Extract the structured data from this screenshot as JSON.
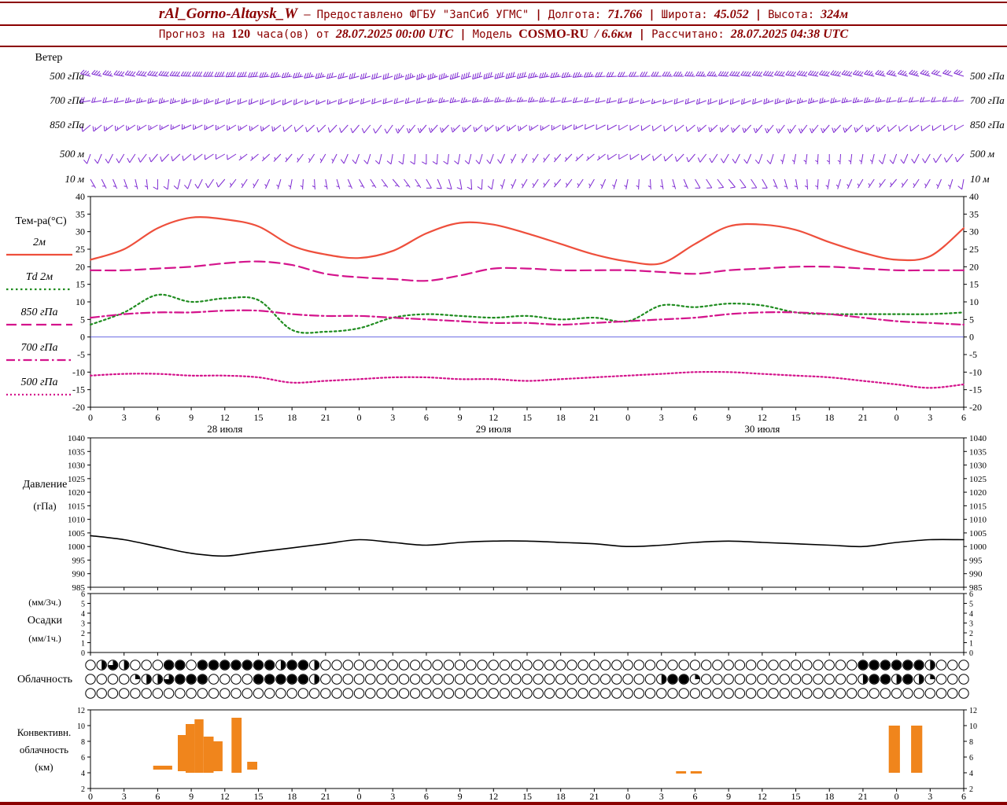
{
  "header": {
    "station": "rAl_Gorno-Altaysk_W",
    "dash": "—",
    "provider": "Предоставлено ФГБУ \"ЗапСиб УГМС\"",
    "sep": "|",
    "lon_label": "Долгота:",
    "lon": "71.766",
    "lat_label": "Широта:",
    "lat": "45.052",
    "alt_label": "Высота:",
    "alt": "324м",
    "forecast_prefix": "Прогноз на",
    "forecast_hours": "120",
    "forecast_suffix": "часа(ов) от",
    "forecast_start": "28.07.2025 00:00 UTC",
    "model_label": "Модель",
    "model_name": "COSMO-RU",
    "model_res": "/ 6.6км",
    "calc_label": "Рассчитано:",
    "calc_time": "28.07.2025 04:38 UTC"
  },
  "colors": {
    "maroon": "#8B0000",
    "wind": "#7E2AD2",
    "temp_2m": "#EE4F3C",
    "dewpoint_2m": "#1F8C1F",
    "temp_850": "#D4148C",
    "pressure": "#000000",
    "precip": "#2E7D32",
    "convective": "#F0851C",
    "zero_line": "#5555DD"
  },
  "x_axis": {
    "tick_step_h": 3,
    "total_hours": 78,
    "hour_label_mod": 24,
    "x_hours": [
      0,
      3,
      6,
      9,
      12,
      15,
      18,
      21,
      24,
      27,
      30,
      33,
      36,
      39,
      42,
      45,
      48,
      51,
      54,
      57,
      60,
      63,
      66,
      69,
      72,
      75,
      78
    ],
    "dates": [
      {
        "t": 12,
        "label": "28 июля"
      },
      {
        "t": 36,
        "label": "29 июля"
      },
      {
        "t": 60,
        "label": "30 июля"
      }
    ]
  },
  "chart_data": [
    {
      "id": "wind",
      "type": "wind-barbs",
      "title": "Ветер",
      "x_step_h": 3,
      "levels": [
        {
          "label": "500 гПа",
          "dir": [
            285,
            280,
            278,
            272,
            268,
            265,
            262,
            258,
            255,
            252,
            250,
            252,
            255,
            258,
            262,
            265,
            268,
            270,
            272,
            274,
            276,
            278,
            280,
            282,
            284,
            286,
            288
          ],
          "speed_kt": [
            35,
            38,
            40,
            42,
            40,
            38,
            35,
            33,
            30,
            32,
            35,
            38,
            40,
            38,
            35,
            33,
            30,
            32,
            35,
            38,
            40,
            42,
            40,
            38,
            35,
            33,
            30
          ]
        },
        {
          "label": "700 гПа",
          "dir": [
            260,
            258,
            255,
            252,
            250,
            248,
            245,
            248,
            250,
            252,
            255,
            258,
            260,
            262,
            260,
            258,
            255,
            252,
            250,
            248,
            250,
            252,
            255,
            258,
            260,
            262,
            264
          ],
          "speed_kt": [
            20,
            22,
            25,
            24,
            22,
            20,
            18,
            17,
            18,
            20,
            22,
            24,
            25,
            24,
            22,
            20,
            18,
            17,
            18,
            20,
            22,
            24,
            25,
            24,
            22,
            20,
            18
          ]
        },
        {
          "label": "850 гПа",
          "dir": [
            230,
            235,
            240,
            245,
            240,
            235,
            230,
            225,
            220,
            215,
            220,
            225,
            230,
            235,
            240,
            245,
            240,
            235,
            230,
            225,
            220,
            215,
            220,
            225,
            230,
            235,
            240
          ],
          "speed_kt": [
            12,
            14,
            15,
            16,
            15,
            14,
            12,
            10,
            10,
            12,
            14,
            15,
            16,
            15,
            14,
            12,
            10,
            10,
            12,
            14,
            15,
            16,
            15,
            14,
            12,
            10,
            10
          ]
        },
        {
          "label": "500 м",
          "dir": [
            200,
            210,
            220,
            230,
            240,
            230,
            220,
            210,
            200,
            190,
            180,
            190,
            200,
            210,
            220,
            230,
            240,
            230,
            220,
            210,
            200,
            190,
            180,
            190,
            200,
            210,
            220
          ],
          "speed_kt": [
            8,
            10,
            12,
            10,
            8,
            7,
            6,
            7,
            8,
            10,
            12,
            10,
            8,
            7,
            6,
            7,
            8,
            10,
            12,
            10,
            8,
            7,
            6,
            7,
            8,
            10,
            12
          ]
        },
        {
          "label": "10 м",
          "dir": [
            150,
            160,
            180,
            200,
            220,
            210,
            190,
            170,
            150,
            140,
            150,
            170,
            190,
            210,
            220,
            210,
            190,
            170,
            150,
            140,
            150,
            170,
            190,
            210,
            220,
            210,
            190
          ],
          "speed_kt": [
            5,
            6,
            8,
            10,
            8,
            6,
            5,
            4,
            5,
            6,
            8,
            10,
            8,
            6,
            5,
            4,
            5,
            6,
            8,
            10,
            8,
            6,
            5,
            4,
            5,
            6,
            8
          ]
        }
      ]
    },
    {
      "id": "temperature",
      "type": "line",
      "title": "Тем-ра(°C)",
      "ylim": [
        -20,
        40
      ],
      "ytick_step": 5,
      "zero_line": true,
      "x_step_h": 3,
      "series": [
        {
          "name": "2м",
          "color": "#EE4F3C",
          "dash": "solid",
          "values": [
            22,
            25,
            31,
            34,
            33.5,
            31.5,
            26,
            23.5,
            22.5,
            24.5,
            29.5,
            32.5,
            32,
            29.5,
            26.5,
            23.5,
            21.5,
            21,
            26.5,
            31.5,
            32,
            30.5,
            27,
            24,
            22,
            23,
            31
          ]
        },
        {
          "name": "Td 2м",
          "color": "#1F8C1F",
          "dash": "dot3",
          "values": [
            3.5,
            7,
            12,
            10,
            11,
            10.5,
            2,
            1.5,
            2.5,
            5.5,
            6.5,
            6,
            5.5,
            6,
            5,
            5.5,
            4.5,
            9,
            8.5,
            9.5,
            9,
            7,
            6.5,
            6.5,
            6.5,
            6.5,
            7
          ]
        },
        {
          "name": "850 гПа",
          "color": "#D4148C",
          "dash": "longdash",
          "values": [
            19,
            19,
            19.5,
            20,
            21,
            21.5,
            20.5,
            18,
            17,
            16.5,
            16,
            17.5,
            19.5,
            19.5,
            19,
            19,
            19,
            18.5,
            18,
            19,
            19.5,
            20,
            20,
            19.5,
            19,
            19,
            19
          ]
        },
        {
          "name": "700 гПа",
          "color": "#D4148C",
          "dash": "dashdot",
          "values": [
            5.5,
            6.5,
            7,
            7,
            7.5,
            7.5,
            6.5,
            6,
            6,
            5.5,
            5,
            4.5,
            4,
            4,
            3.5,
            4,
            4.5,
            5,
            5.5,
            6.5,
            7,
            7,
            6.5,
            5.5,
            4.5,
            4,
            3.5
          ]
        },
        {
          "name": "500 гПа",
          "color": "#D4148C",
          "dash": "dot2",
          "values": [
            -11,
            -10.5,
            -10.5,
            -11,
            -11,
            -11.5,
            -13,
            -12.5,
            -12,
            -11.5,
            -11.5,
            -12,
            -12,
            -12.5,
            -12,
            -11.5,
            -11,
            -10.5,
            -10,
            -10,
            -10.5,
            -11,
            -11.5,
            -12.5,
            -13.5,
            -14.5,
            -13.5
          ]
        }
      ]
    },
    {
      "id": "pressure",
      "type": "line",
      "title": "Давление",
      "unit": "(гПа)",
      "ylim": [
        985,
        1040
      ],
      "ytick_step": 5,
      "x_step_h": 3,
      "series": [
        {
          "name": "Давление",
          "color": "#000000",
          "dash": "solid",
          "values": [
            1004,
            1002.5,
            1000,
            997.5,
            996.5,
            998,
            999.5,
            1001,
            1002.5,
            1001.5,
            1000.5,
            1001.5,
            1002,
            1002,
            1001.5,
            1001,
            1000,
            1000.5,
            1001.5,
            1002,
            1001.5,
            1001,
            1000.5,
            1000,
            1001.5,
            1002.5,
            1002.5
          ]
        }
      ]
    },
    {
      "id": "precipitation",
      "type": "bar",
      "title": "Осадки",
      "unit_top": "(мм/3ч.)",
      "unit_bottom": "(мм/1ч.)",
      "ylim": [
        0,
        6
      ],
      "ytick_step": 1,
      "x_step_h": 3,
      "values_3h": [
        0,
        0,
        0,
        0,
        0,
        0,
        0,
        0,
        0,
        0,
        0,
        0,
        0,
        0,
        0,
        0,
        0,
        0,
        0,
        0,
        0,
        0,
        0,
        0,
        0,
        0,
        0
      ]
    },
    {
      "id": "cloudiness",
      "type": "symbols",
      "title": "Облачность",
      "legend": "0=clear circle, 4=filled circle, hourly symbols, rows = upper/middle/lower layers",
      "rows": [
        "0232000440444444424420000000000000000000000000000000000000000000000004444442000",
        "0000122344400004444420000000000000000000000000000002441000000000000002442421000",
        "0000000000000000000000000000000000000000000000000000000000000000000000000000000"
      ]
    },
    {
      "id": "convective",
      "type": "bar-range",
      "title_lines": [
        "Конвективн.",
        "облачность",
        "(км)"
      ],
      "ylim": [
        2,
        12
      ],
      "ytick_step": 2,
      "bars": [
        {
          "t0": 5.6,
          "t1": 7.3,
          "k0": 4.4,
          "k1": 4.9
        },
        {
          "t0": 7.8,
          "t1": 8.5,
          "k0": 4.2,
          "k1": 8.8
        },
        {
          "t0": 8.5,
          "t1": 9.3,
          "k0": 4.0,
          "k1": 10.2
        },
        {
          "t0": 9.3,
          "t1": 10.1,
          "k0": 4.0,
          "k1": 10.8
        },
        {
          "t0": 10.1,
          "t1": 11.0,
          "k0": 4.0,
          "k1": 8.6
        },
        {
          "t0": 11.0,
          "t1": 11.8,
          "k0": 4.2,
          "k1": 8.0
        },
        {
          "t0": 12.6,
          "t1": 13.5,
          "k0": 4.0,
          "k1": 11.0
        },
        {
          "t0": 14.0,
          "t1": 14.9,
          "k0": 4.4,
          "k1": 5.4
        },
        {
          "t0": 52.3,
          "t1": 53.2,
          "k0": 3.9,
          "k1": 4.2
        },
        {
          "t0": 53.6,
          "t1": 54.6,
          "k0": 3.9,
          "k1": 4.2
        },
        {
          "t0": 71.3,
          "t1": 72.3,
          "k0": 4.0,
          "k1": 10.0
        },
        {
          "t0": 73.3,
          "t1": 74.3,
          "k0": 4.0,
          "k1": 10.0
        }
      ]
    }
  ]
}
